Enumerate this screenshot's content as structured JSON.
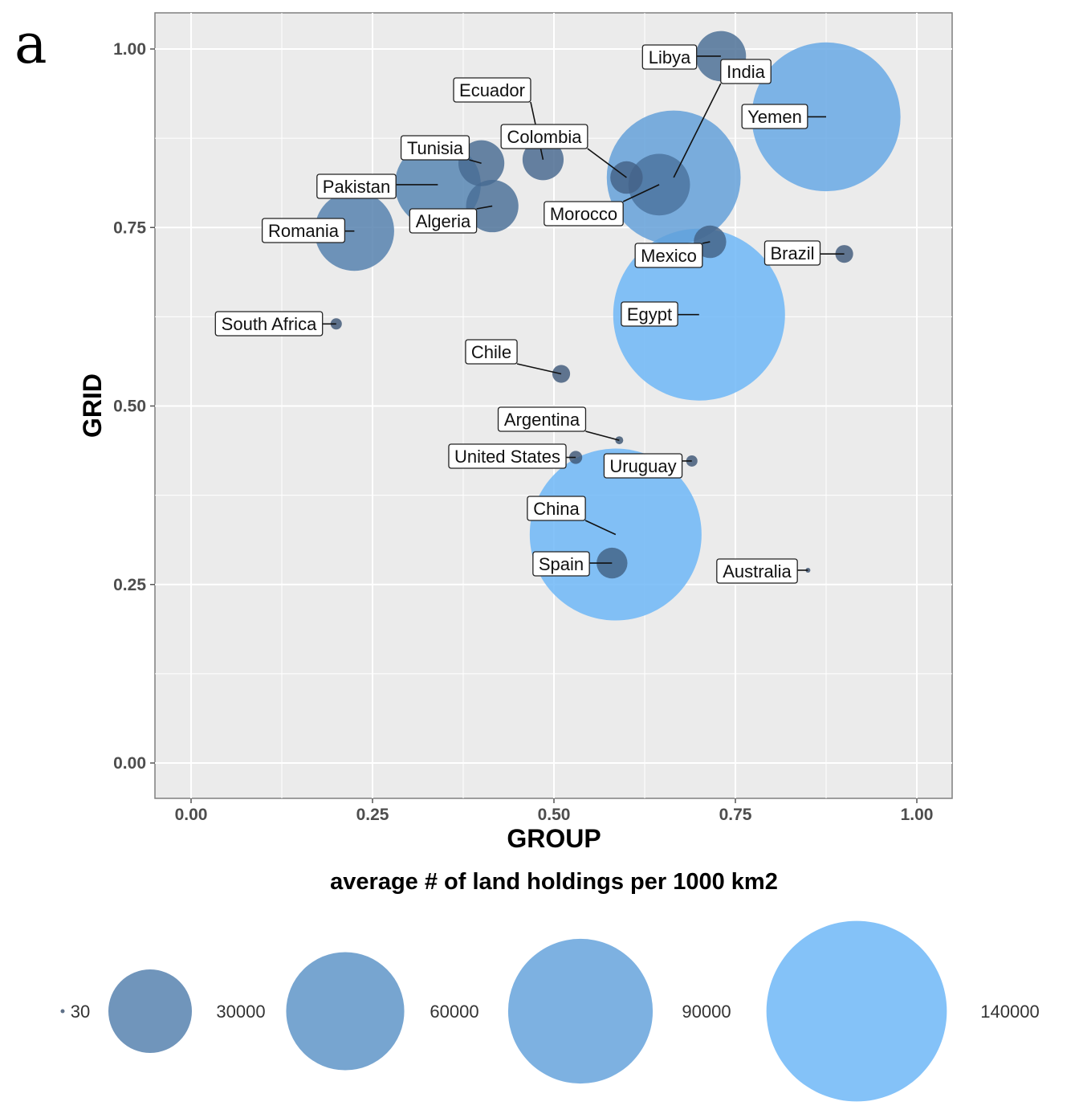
{
  "panel_label": "a",
  "chart_data": {
    "type": "scatter",
    "subtype": "bubble",
    "xlabel": "GROUP",
    "ylabel": "GRID",
    "xlim": [
      -0.05,
      1.05
    ],
    "ylim": [
      -0.05,
      1.05
    ],
    "x_ticks": [
      "0.00",
      "0.25",
      "0.50",
      "0.75",
      "1.00"
    ],
    "y_ticks": [
      "0.00",
      "0.25",
      "0.50",
      "0.75",
      "1.00"
    ],
    "grid": true,
    "size_legend": {
      "title": "average # of land holdings per 1000 km2",
      "placement": "bottom",
      "entries": [
        {
          "label": "30",
          "value": 30
        },
        {
          "label": "30000",
          "value": 30000
        },
        {
          "label": "60000",
          "value": 60000
        },
        {
          "label": "90000",
          "value": 90000
        },
        {
          "label": "140000",
          "value": 140000
        }
      ]
    },
    "points": [
      {
        "name": "Libya",
        "x": 0.73,
        "y": 0.99,
        "size": 12000
      },
      {
        "name": "India",
        "x": 0.665,
        "y": 0.82,
        "size": 85000
      },
      {
        "name": "Yemen",
        "x": 0.875,
        "y": 0.905,
        "size": 105000
      },
      {
        "name": "Ecuador",
        "x": 0.485,
        "y": 0.845,
        "size": 8000
      },
      {
        "name": "Colombia",
        "x": 0.6,
        "y": 0.82,
        "size": 5000
      },
      {
        "name": "Tunisia",
        "x": 0.4,
        "y": 0.84,
        "size": 10000
      },
      {
        "name": "Pakistan",
        "x": 0.34,
        "y": 0.81,
        "size": 35000
      },
      {
        "name": "Algeria",
        "x": 0.415,
        "y": 0.78,
        "size": 13000
      },
      {
        "name": "Morocco",
        "x": 0.645,
        "y": 0.81,
        "size": 18000
      },
      {
        "name": "Romania",
        "x": 0.225,
        "y": 0.745,
        "size": 30000
      },
      {
        "name": "Mexico",
        "x": 0.715,
        "y": 0.73,
        "size": 5000
      },
      {
        "name": "Brazil",
        "x": 0.9,
        "y": 0.713,
        "size": 1500
      },
      {
        "name": "Egypt",
        "x": 0.7,
        "y": 0.628,
        "size": 140000
      },
      {
        "name": "South Africa",
        "x": 0.2,
        "y": 0.615,
        "size": 600
      },
      {
        "name": "Chile",
        "x": 0.51,
        "y": 0.545,
        "size": 1500
      },
      {
        "name": "Argentina",
        "x": 0.59,
        "y": 0.452,
        "size": 300
      },
      {
        "name": "United States",
        "x": 0.53,
        "y": 0.428,
        "size": 800
      },
      {
        "name": "Uruguay",
        "x": 0.69,
        "y": 0.423,
        "size": 600
      },
      {
        "name": "China",
        "x": 0.585,
        "y": 0.32,
        "size": 140000
      },
      {
        "name": "Spain",
        "x": 0.58,
        "y": 0.28,
        "size": 4500
      },
      {
        "name": "Australia",
        "x": 0.85,
        "y": 0.27,
        "size": 30
      }
    ]
  }
}
